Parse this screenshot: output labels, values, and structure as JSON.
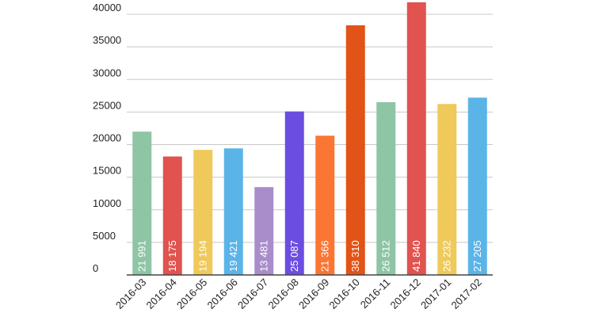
{
  "chart_data": {
    "type": "bar",
    "categories": [
      "2016-03",
      "2016-04",
      "2016-05",
      "2016-06",
      "2016-07",
      "2016-08",
      "2016-09",
      "2016-10",
      "2016-11",
      "2016-12",
      "2017-01",
      "2017-02"
    ],
    "values": [
      21991,
      18175,
      19194,
      19421,
      13481,
      25087,
      21366,
      38310,
      26512,
      41840,
      26232,
      27205
    ],
    "data_labels": [
      "21 991",
      "18 175",
      "19 194",
      "19 421",
      "13 481",
      "25 087",
      "21 366",
      "38 310",
      "26 512",
      "41 840",
      "26 232",
      "27 205"
    ],
    "colors": [
      "#8ec5a5",
      "#e0534f",
      "#efc95a",
      "#5ab4e8",
      "#a98dcb",
      "#6c4de2",
      "#fb7633",
      "#e25317",
      "#8ec5a5",
      "#e0534f",
      "#efc95a",
      "#5ab4e8"
    ],
    "yticks": [
      0,
      5000,
      10000,
      15000,
      20000,
      25000,
      30000,
      35000,
      40000
    ],
    "ytick_labels": [
      "0",
      "5000",
      "10000",
      "15000",
      "20000",
      "25000",
      "30000",
      "35000",
      "40000"
    ],
    "ylim": [
      0,
      40000
    ],
    "title": "",
    "xlabel": "",
    "ylabel": "",
    "grid": true,
    "legend": "none"
  }
}
